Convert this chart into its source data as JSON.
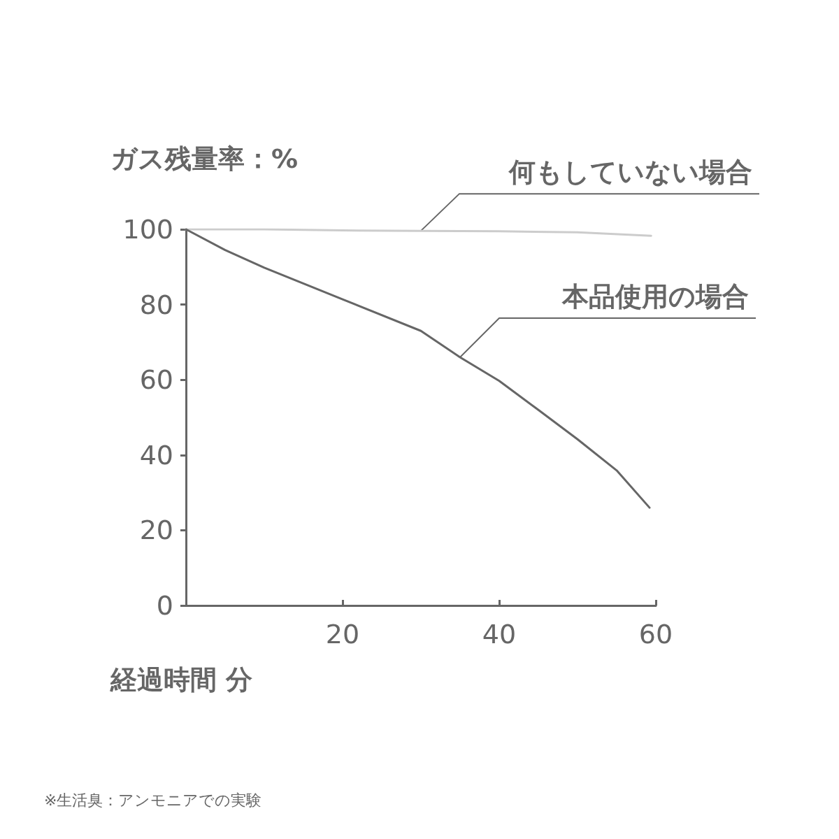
{
  "chart_data": {
    "type": "line",
    "ylabel": "ガス残量率：%",
    "xlabel": "経過時間 分",
    "annotations": [
      "※生活臭：アンモニアでの実験"
    ],
    "xlim": [
      0,
      60
    ],
    "xticks": [
      20,
      40,
      60
    ],
    "ylim": [
      0,
      100
    ],
    "yticks": [
      0,
      20,
      40,
      60,
      80,
      100
    ],
    "grid": false,
    "legend": false,
    "marker": "none",
    "line_style": "solid",
    "series": [
      {
        "name": "何もしていない場合",
        "color": "#cccccc",
        "x": [
          0,
          10,
          20,
          30,
          40,
          50,
          59.4
        ],
        "values": [
          100,
          100,
          99.7,
          99.6,
          99.5,
          99.2,
          98.3
        ]
      },
      {
        "name": "本品使用の場合",
        "color": "#666666",
        "x": [
          0,
          5,
          10,
          20,
          30,
          35,
          40,
          45,
          50,
          55,
          59.2
        ],
        "values": [
          100,
          94.5,
          89.8,
          81.4,
          73,
          66,
          59.7,
          52,
          44.2,
          35.9,
          26
        ]
      }
    ]
  }
}
